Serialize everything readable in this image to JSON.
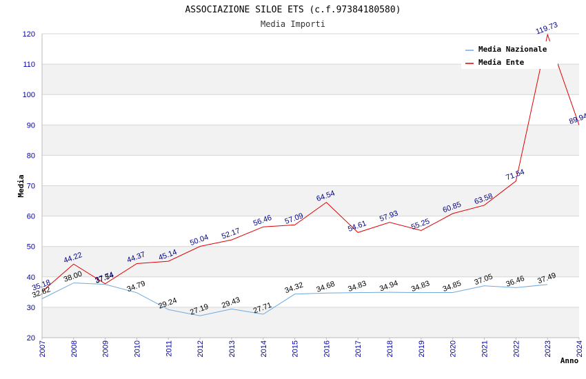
{
  "chart_data": {
    "type": "line",
    "title": "ASSOCIAZIONE SILOE ETS (c.f.97384180580)",
    "subtitle": "Media Importi",
    "ylabel": "Media",
    "xlabel": "Anno",
    "ylim": [
      20,
      120
    ],
    "yticks": [
      20,
      30,
      40,
      50,
      60,
      70,
      80,
      90,
      100,
      110,
      120
    ],
    "categories": [
      "2007",
      "2008",
      "2009",
      "2010",
      "2011",
      "2012",
      "2013",
      "2014",
      "2015",
      "2016",
      "2017",
      "2018",
      "2019",
      "2020",
      "2021",
      "2022",
      "2023",
      "2024"
    ],
    "legend_position": "top-right",
    "grid": true,
    "series": [
      {
        "name": "Media Nazionale",
        "color": "#6fa8dc",
        "label_color": "#000000",
        "values": [
          32.82,
          38.0,
          37.54,
          34.79,
          29.24,
          27.19,
          29.43,
          27.71,
          34.32,
          34.68,
          34.83,
          34.94,
          34.83,
          34.85,
          37.05,
          36.46,
          37.49,
          null
        ],
        "labels": [
          "32.82",
          "38.00",
          "37.54",
          "34.79",
          "29.24",
          "27.19",
          "29.43",
          "27.71",
          "34.32",
          "34.68",
          "34.83",
          "34.94",
          "34.83",
          "34.85",
          "37.05",
          "36.46",
          "37.49",
          null
        ]
      },
      {
        "name": "Media Ente",
        "color": "#e00000",
        "label_color": "#000080",
        "values": [
          35.18,
          44.22,
          37.74,
          44.37,
          45.14,
          50.04,
          52.17,
          56.46,
          57.09,
          64.54,
          54.61,
          57.93,
          55.25,
          60.85,
          63.58,
          71.54,
          119.73,
          89.94
        ],
        "labels": [
          "35.18",
          "44.22",
          "37.74",
          "44.37",
          "45.14",
          "50.04",
          "52.17",
          "56.46",
          "57.09",
          "64.54",
          "54.61",
          "57.93",
          "55.25",
          "60.85",
          "63.58",
          "71.54",
          "119.73",
          "89.94"
        ]
      }
    ]
  }
}
